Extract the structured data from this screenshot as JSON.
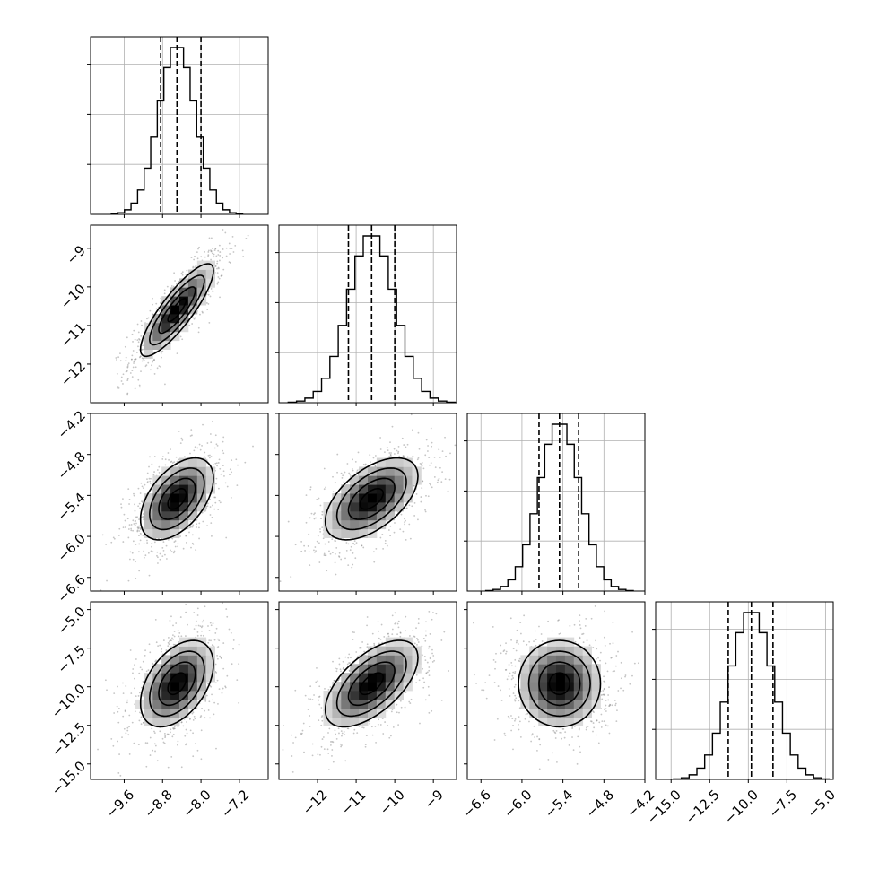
{
  "chart_data": {
    "type": "corner",
    "title": "",
    "parameters": 4,
    "axis_ranges": {
      "p0": [
        -10.3,
        -6.6
      ],
      "p1": [
        -13.0,
        -8.4
      ],
      "p2": [
        -6.8,
        -4.2
      ],
      "p3": [
        -16.0,
        -4.5
      ]
    },
    "ticks": {
      "p0": {
        "values": [
          -9.6,
          -8.8,
          -8.0,
          -7.2
        ],
        "labels": [
          "−9.6",
          "−8.8",
          "−8.0",
          "−7.2"
        ]
      },
      "p1": {
        "values": [
          -12,
          -11,
          -10,
          -9
        ],
        "labels": [
          "−12",
          "−11",
          "−10",
          "−9"
        ]
      },
      "p2": {
        "values": [
          -6.6,
          -6.0,
          -5.4,
          -4.8,
          -4.2
        ],
        "labels": [
          "−6.6",
          "−6.0",
          "−5.4",
          "−4.8",
          "−4.2"
        ]
      },
      "p3": {
        "values": [
          -15.0,
          -12.5,
          -10.0,
          -7.5,
          -5.0
        ],
        "labels": [
          "−15.0",
          "−12.5",
          "−10.0",
          "−7.5",
          "−5.0"
        ]
      }
    },
    "row_tick_labels": {
      "row1": [
        "−9",
        "−10",
        "−11",
        "−12"
      ],
      "row2": [
        "−4.2",
        "−4.8",
        "−5.4",
        "−6.0",
        "−6.6"
      ],
      "row3": [
        "−5.0",
        "−7.5",
        "−10.0",
        "−12.5",
        "−15.0"
      ]
    },
    "column_tick_labels": {
      "col0": [
        "−9.6",
        "−8.8",
        "−8.0",
        "−7.2"
      ],
      "col1": [
        "−12",
        "−11",
        "−10",
        "−9"
      ],
      "col2": [
        "−6.6",
        "−6.0",
        "−5.4",
        "−4.8",
        "−4.2"
      ],
      "col3": [
        "−15.0",
        "−12.5",
        "−10.0",
        "−7.5",
        "−5.0"
      ]
    },
    "marginals": [
      {
        "param": "p0",
        "mean": -8.5,
        "sd": 0.38,
        "quantiles": [
          -8.84,
          -8.5,
          -8.0
        ]
      },
      {
        "param": "p1",
        "mean": -10.6,
        "sd": 0.6,
        "quantiles": [
          -11.2,
          -10.6,
          -10.0
        ]
      },
      {
        "param": "p2",
        "mean": -5.45,
        "sd": 0.3,
        "quantiles": [
          -5.75,
          -5.45,
          -5.17
        ]
      },
      {
        "param": "p3",
        "mean": -9.8,
        "sd": 1.4,
        "quantiles": [
          -11.3,
          -9.8,
          -8.4
        ]
      }
    ],
    "pairs": [
      {
        "x": "p0",
        "y": "p1",
        "corr": 0.85
      },
      {
        "x": "p0",
        "y": "p2",
        "corr": 0.5
      },
      {
        "x": "p1",
        "y": "p2",
        "corr": 0.55
      },
      {
        "x": "p0",
        "y": "p3",
        "corr": 0.45
      },
      {
        "x": "p1",
        "y": "p3",
        "corr": 0.6
      },
      {
        "x": "p2",
        "y": "p3",
        "corr": 0.0
      }
    ],
    "grid": true,
    "colors": {
      "line": "#000000",
      "grid": "#b0b0b0",
      "points": "#7f7f7f"
    }
  }
}
